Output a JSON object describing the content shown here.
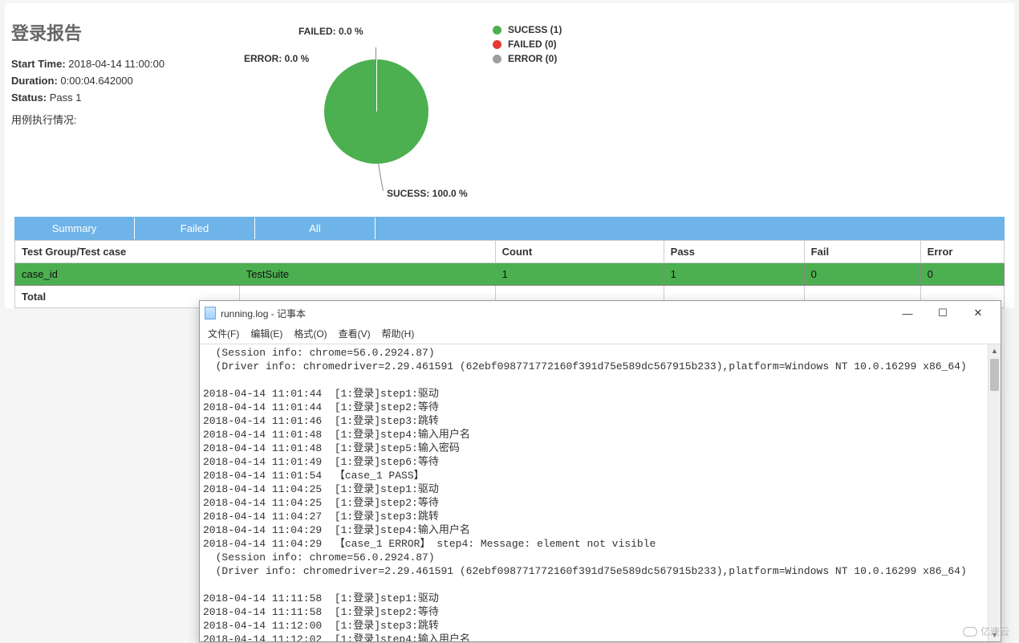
{
  "report": {
    "title": "登录报告",
    "meta": {
      "start_time_label": "Start Time:",
      "start_time_value": "2018-04-14 11:00:00",
      "duration_label": "Duration:",
      "duration_value": "0:00:04.642000",
      "status_label": "Status:",
      "status_value": "Pass 1",
      "exec_label": "用例执行情况:"
    }
  },
  "chart": {
    "type": "pie",
    "slices": [
      {
        "name": "SUCESS",
        "pct": 100.0,
        "color": "#4caf50"
      },
      {
        "name": "FAILED",
        "pct": 0.0,
        "color": "#e53935"
      },
      {
        "name": "ERROR",
        "pct": 0.0,
        "color": "#9e9e9e"
      }
    ],
    "labels": {
      "failed": "FAILED: 0.0 %",
      "error": "ERROR: 0.0 %",
      "success": "SUCESS: 100.0 %"
    },
    "legend": [
      {
        "label": "SUCESS (1)",
        "color": "#4caf50"
      },
      {
        "label": "FAILED (0)",
        "color": "#e53935"
      },
      {
        "label": "ERROR (0)",
        "color": "#9e9e9e"
      }
    ],
    "background": "#ffffff",
    "label_fontsize": 12,
    "label_fontweight": "bold",
    "tick_color": "#888888"
  },
  "tabs": {
    "items": [
      "Summary",
      "Failed",
      "All"
    ],
    "bg_color": "#6fb4e8",
    "text_color": "#ffffff"
  },
  "table": {
    "columns": [
      "Test Group/Test case",
      "",
      "Count",
      "Pass",
      "Fail",
      "Error"
    ],
    "col_widths": [
      "280px",
      "330px",
      "210px",
      "175px",
      "145px",
      "auto"
    ],
    "rows": [
      {
        "cells": [
          "case_id",
          "TestSuite",
          "1",
          "1",
          "0",
          "0"
        ],
        "row_class": "pass-row"
      },
      {
        "cells": [
          "Total",
          "",
          "",
          "",
          "",
          ""
        ],
        "row_class": "total-row"
      }
    ],
    "pass_row_bg": "#4caf50",
    "border_color": "#cccccc"
  },
  "notepad": {
    "title": "running.log - 记事本",
    "menu": [
      "文件(F)",
      "编辑(E)",
      "格式(O)",
      "查看(V)",
      "帮助(H)"
    ],
    "controls": {
      "min": "—",
      "max": "☐",
      "close": "✕"
    },
    "content": "  (Session info: chrome=56.0.2924.87)\n  (Driver info: chromedriver=2.29.461591 (62ebf098771772160f391d75e589dc567915b233),platform=Windows NT 10.0.16299 x86_64)\n\n2018-04-14 11:01:44  [1:登录]step1:驱动\n2018-04-14 11:01:44  [1:登录]step2:等待\n2018-04-14 11:01:46  [1:登录]step3:跳转\n2018-04-14 11:01:48  [1:登录]step4:输入用户名\n2018-04-14 11:01:48  [1:登录]step5:输入密码\n2018-04-14 11:01:49  [1:登录]step6:等待\n2018-04-14 11:01:54  【case_1 PASS】\n2018-04-14 11:04:25  [1:登录]step1:驱动\n2018-04-14 11:04:25  [1:登录]step2:等待\n2018-04-14 11:04:27  [1:登录]step3:跳转\n2018-04-14 11:04:29  [1:登录]step4:输入用户名\n2018-04-14 11:04:29  【case_1 ERROR】 step4: Message: element not visible\n  (Session info: chrome=56.0.2924.87)\n  (Driver info: chromedriver=2.29.461591 (62ebf098771772160f391d75e589dc567915b233),platform=Windows NT 10.0.16299 x86_64)\n\n2018-04-14 11:11:58  [1:登录]step1:驱动\n2018-04-14 11:11:58  [1:登录]step2:等待\n2018-04-14 11:12:00  [1:登录]step3:跳转\n2018-04-14 11:12:02  [1:登录]step4:输入用户名"
  },
  "watermark": "亿速云"
}
